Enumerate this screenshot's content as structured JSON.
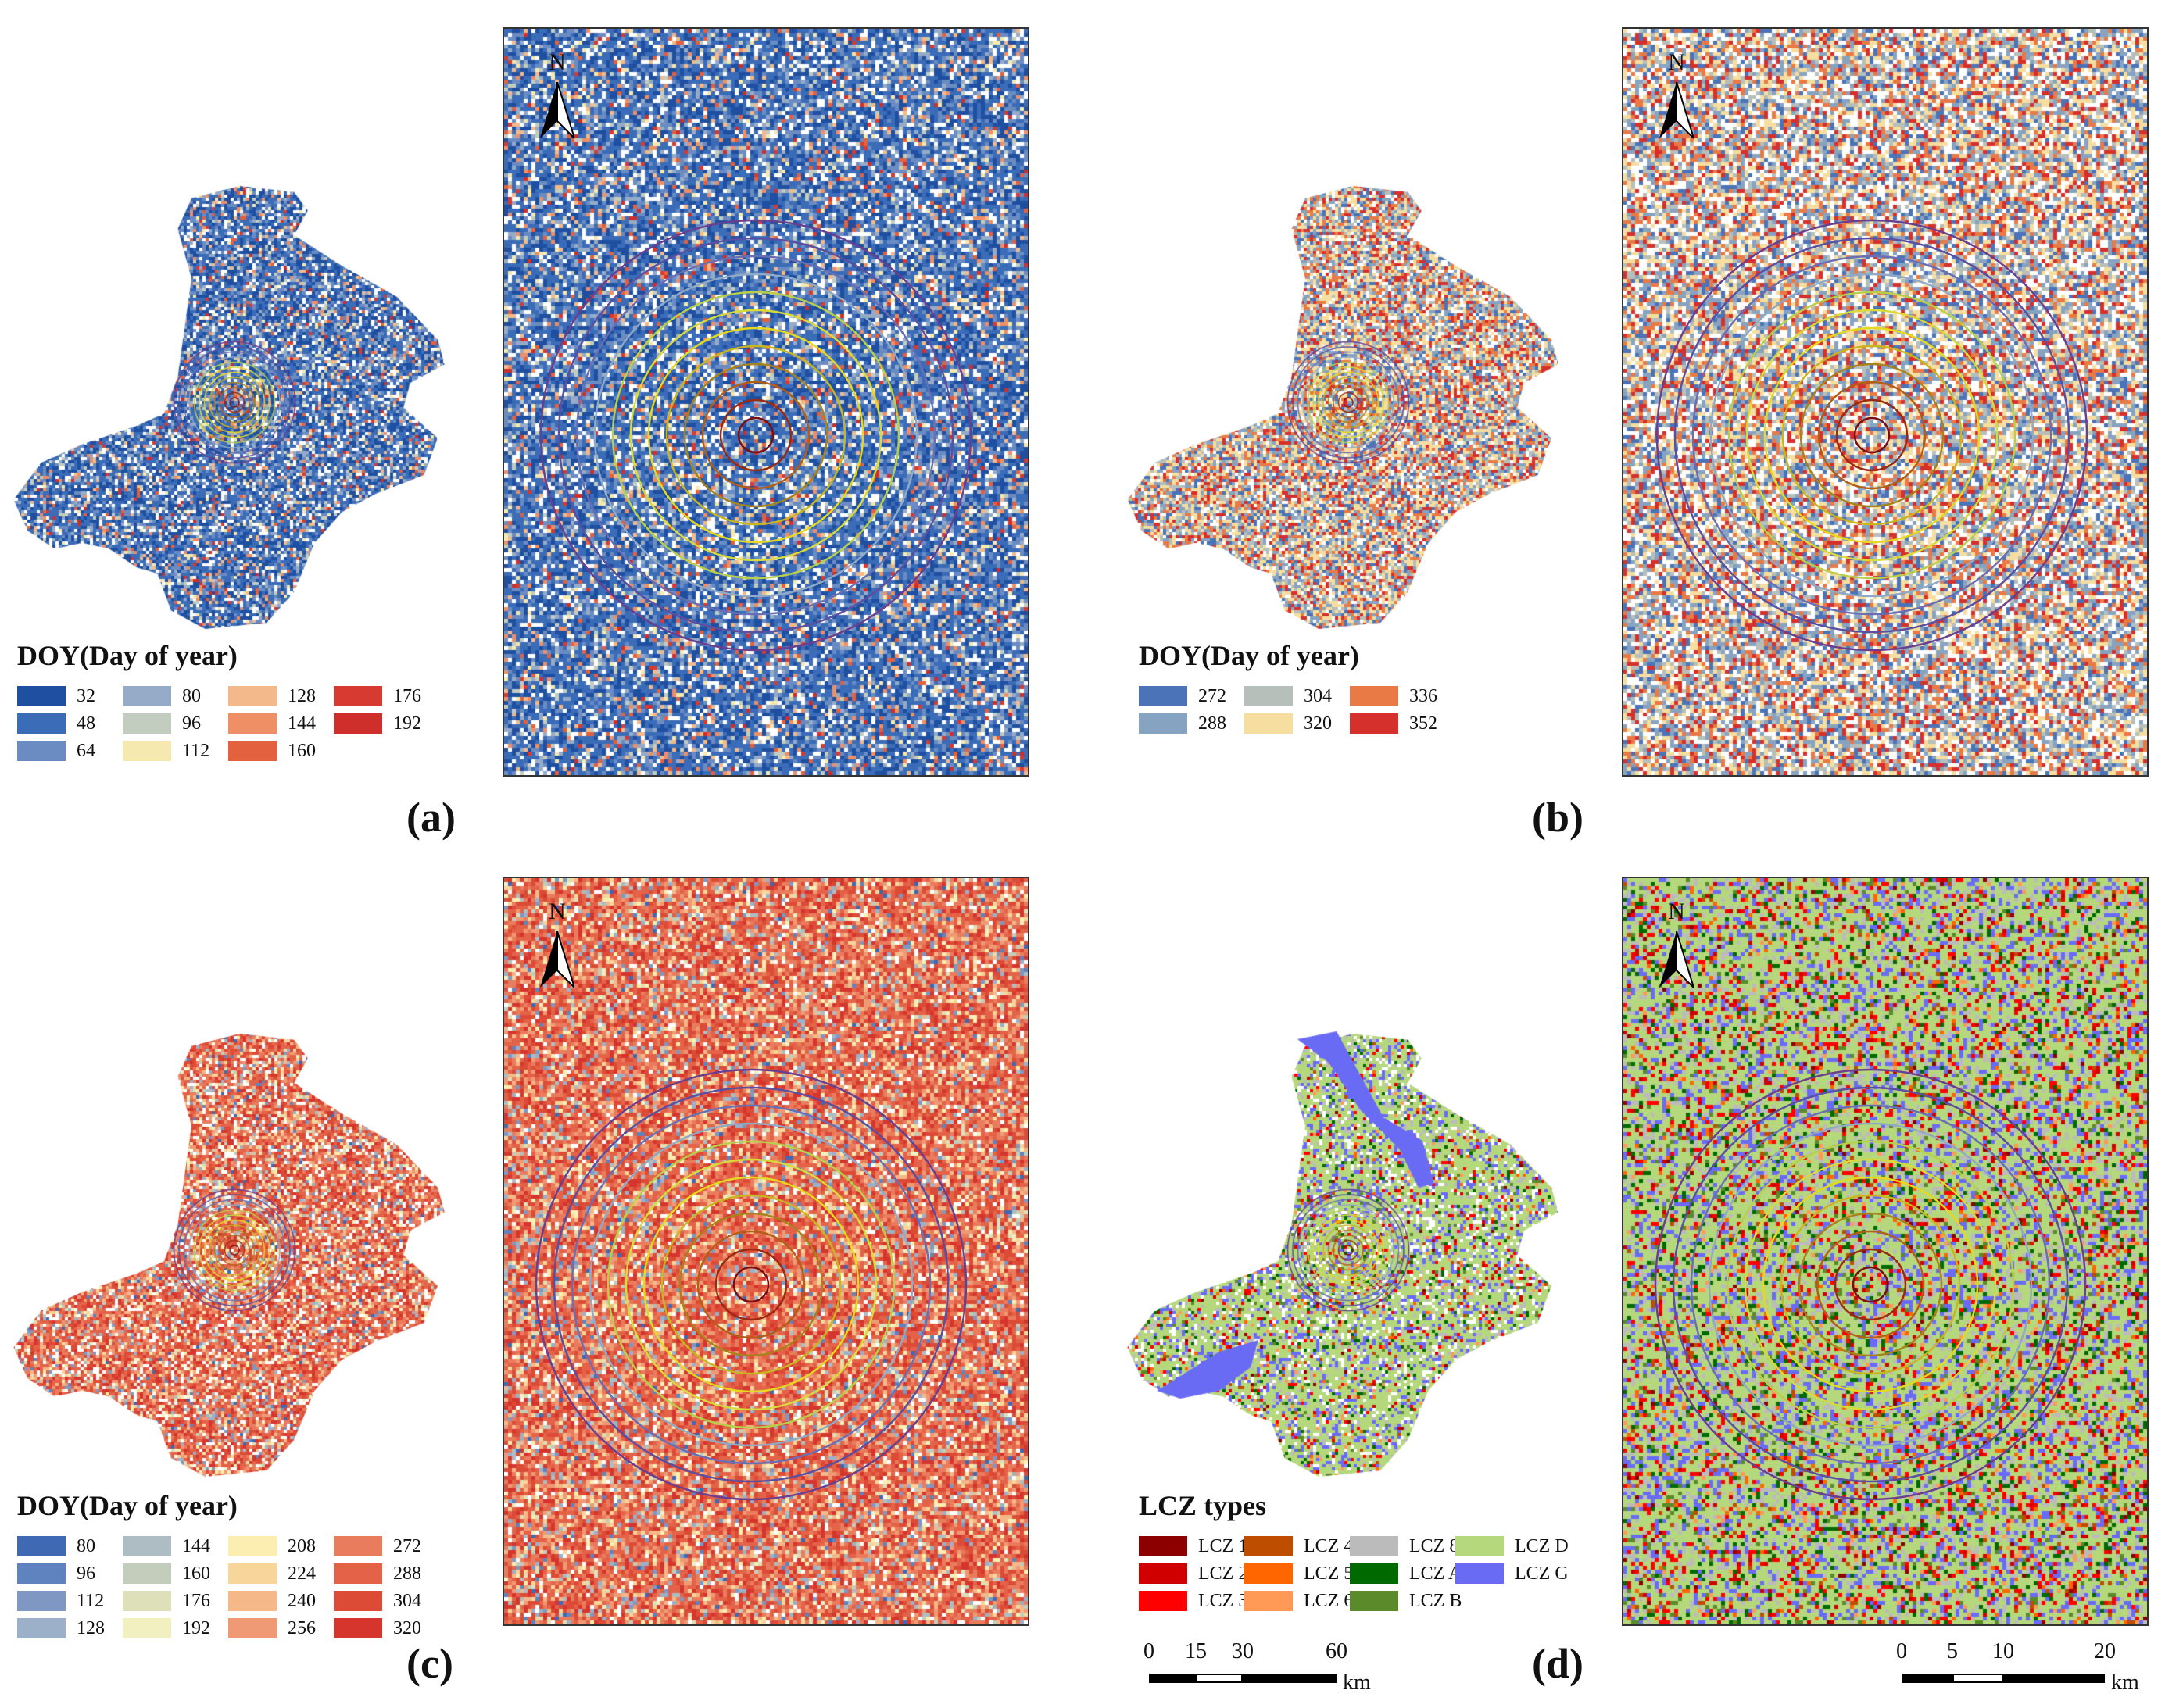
{
  "panels": {
    "a": {
      "label": "(a)",
      "legend": {
        "title": "DOY(Day of year)",
        "columns": 4,
        "items": [
          {
            "value": "32",
            "color": "#1f4fa0"
          },
          {
            "value": "48",
            "color": "#3a6cb8"
          },
          {
            "value": "64",
            "color": "#6a8cc3"
          },
          {
            "value": "80",
            "color": "#95abc7"
          },
          {
            "value": "96",
            "color": "#c2cdbf"
          },
          {
            "value": "112",
            "color": "#f6e9b0"
          },
          {
            "value": "128",
            "color": "#f4b98a"
          },
          {
            "value": "144",
            "color": "#ef8f66"
          },
          {
            "value": "160",
            "color": "#e3613f"
          },
          {
            "value": "176",
            "color": "#d63a31"
          },
          {
            "value": "192",
            "color": "#cf2f2a"
          }
        ]
      }
    },
    "b": {
      "label": "(b)",
      "legend": {
        "title": "DOY(Day of year)",
        "columns": 3,
        "items": [
          {
            "value": "272",
            "color": "#4a73b8"
          },
          {
            "value": "288",
            "color": "#87a3c2"
          },
          {
            "value": "304",
            "color": "#b6bfba"
          },
          {
            "value": "320",
            "color": "#f6dea0"
          },
          {
            "value": "336",
            "color": "#e97a45"
          },
          {
            "value": "352",
            "color": "#d6302c"
          }
        ]
      }
    },
    "c": {
      "label": "(c)",
      "legend": {
        "title": "DOY(Day of year)",
        "columns": 4,
        "items": [
          {
            "value": "80",
            "color": "#3f69b2"
          },
          {
            "value": "96",
            "color": "#5f83bf"
          },
          {
            "value": "112",
            "color": "#7f98c3"
          },
          {
            "value": "128",
            "color": "#9cb0c9"
          },
          {
            "value": "144",
            "color": "#aebdc3"
          },
          {
            "value": "160",
            "color": "#c3cdbc"
          },
          {
            "value": "176",
            "color": "#dde0b8"
          },
          {
            "value": "192",
            "color": "#f2efc0"
          },
          {
            "value": "208",
            "color": "#fbeeb0"
          },
          {
            "value": "224",
            "color": "#f8d59a"
          },
          {
            "value": "240",
            "color": "#f4b889"
          },
          {
            "value": "256",
            "color": "#ef9a74"
          },
          {
            "value": "272",
            "color": "#ea7c5e"
          },
          {
            "value": "288",
            "color": "#e46348"
          },
          {
            "value": "304",
            "color": "#dc4b36"
          },
          {
            "value": "320",
            "color": "#d5352d"
          }
        ]
      }
    },
    "d": {
      "label": "(d)",
      "legend": {
        "title": "LCZ types",
        "columns": 4,
        "items": [
          {
            "value": "LCZ 1",
            "color": "#8c0000"
          },
          {
            "value": "LCZ 2",
            "color": "#d00000"
          },
          {
            "value": "LCZ 3",
            "color": "#ff0000"
          },
          {
            "value": "LCZ 4",
            "color": "#bf4d00"
          },
          {
            "value": "LCZ 5",
            "color": "#ff6600"
          },
          {
            "value": "LCZ 6",
            "color": "#ff9955"
          },
          {
            "value": "LCZ 8",
            "color": "#bbbbbb"
          },
          {
            "value": "LCZ A",
            "color": "#006a00"
          },
          {
            "value": "LCZ B",
            "color": "#5a8a2a"
          },
          {
            "value": "LCZ D",
            "color": "#b5d87c"
          },
          {
            "value": "LCZ G",
            "color": "#6a6bf5"
          }
        ]
      },
      "scalebar_overview": {
        "ticks": [
          "0",
          "15",
          "30",
          "60"
        ],
        "tick_values": [
          0,
          15,
          30,
          60
        ],
        "unit": "km"
      },
      "scalebar_zoom": {
        "ticks": [
          "0",
          "5",
          "10",
          "20"
        ],
        "tick_values": [
          0,
          5,
          10,
          20
        ],
        "unit": "km"
      }
    }
  },
  "north_arrow": {
    "label": "N"
  },
  "ring_colors": [
    "#7a0f12",
    "#9a2a12",
    "#b25f16",
    "#a8821a",
    "#c9b51f",
    "#e6d81c",
    "#d8da3a",
    "#b9cf4a",
    "#8fa9c6",
    "#6a6fb5",
    "#5a4fa0",
    "#6a3f8f"
  ]
}
